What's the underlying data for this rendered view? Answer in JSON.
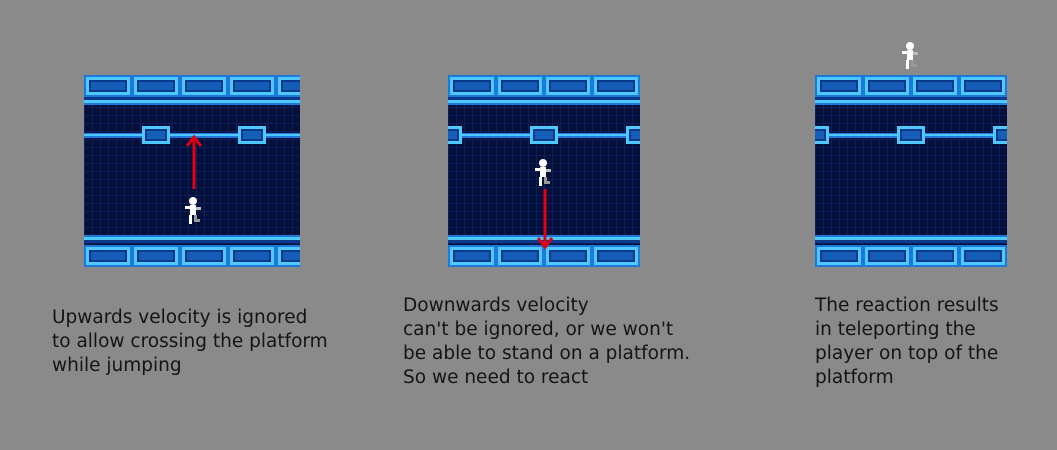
{
  "panels": [
    {
      "caption": "Upwards velocity is ignored\nto allow crossing the platform\nwhile jumping",
      "arrow_direction": "up",
      "player_pose": "jumping"
    },
    {
      "caption": "Downwards velocity\ncan't be ignored, or we won't\nbe able to stand on a platform.\nSo we need to react",
      "arrow_direction": "down",
      "player_pose": "falling"
    },
    {
      "caption": "The reaction results\nin teleporting the\nplayer on top of the\nplatform",
      "arrow_direction": "none",
      "player_pose": "standing-on-top"
    }
  ],
  "colors": {
    "background": "#8a8a8a",
    "tile_dark": "#04103a",
    "tile_grid": "#0a1f5c",
    "platform_light": "#4ec8ff",
    "platform_mid": "#1e78d8",
    "platform_dark": "#0b3a8a",
    "arrow": "#e00010",
    "player": "#ffffff",
    "caption_text": "#141414"
  }
}
